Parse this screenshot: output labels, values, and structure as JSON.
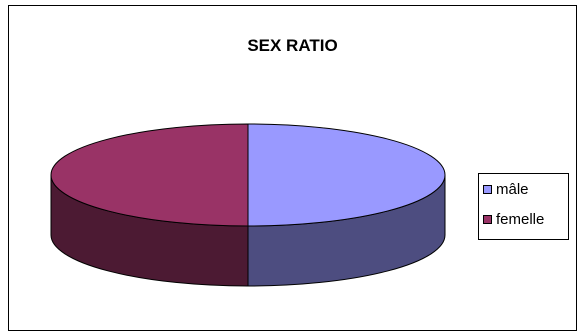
{
  "chart_data": {
    "type": "pie",
    "title": "SEX RATIO",
    "categories": [
      "mâle",
      "femelle"
    ],
    "values": [
      50,
      50
    ],
    "colors": [
      "#9999FF",
      "#993366"
    ],
    "side_colors": [
      "#4d4d80",
      "#4c1a33"
    ],
    "legend_position": "right",
    "style": "3d"
  }
}
